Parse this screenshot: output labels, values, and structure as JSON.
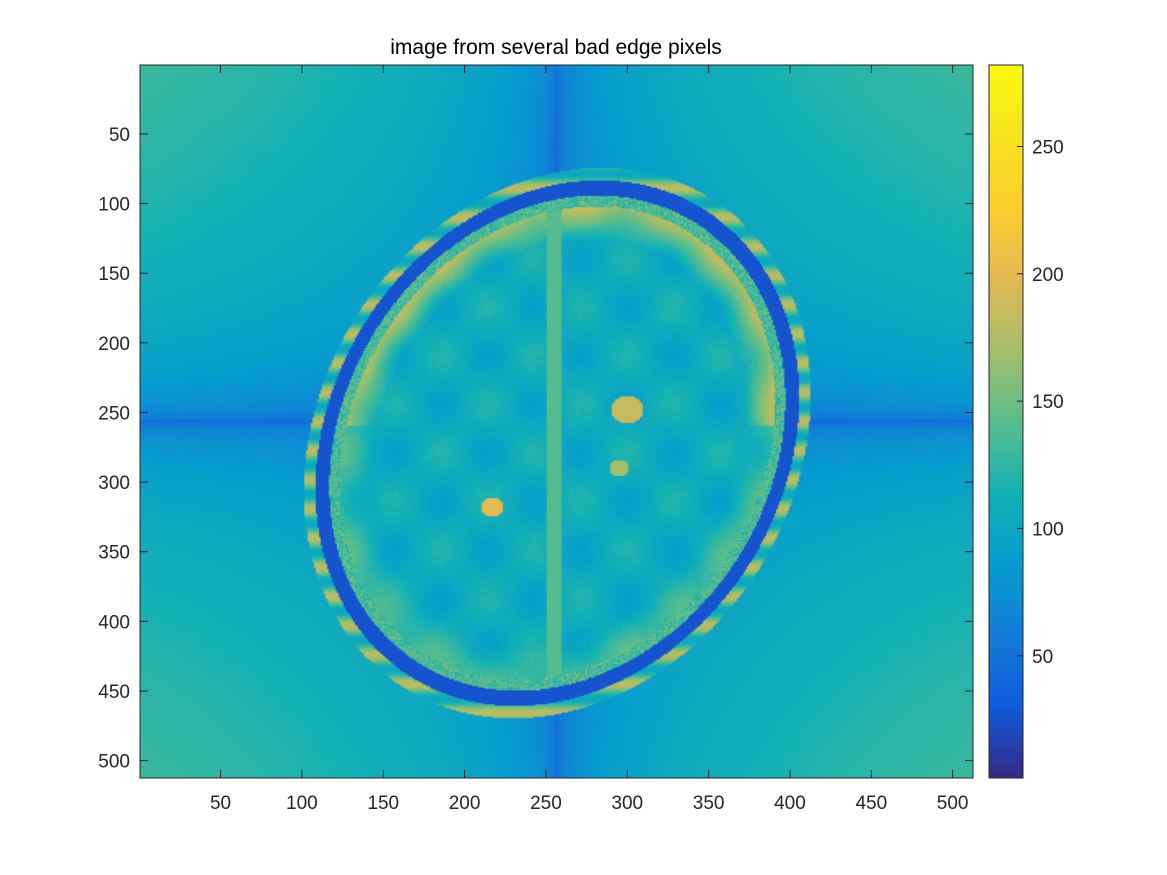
{
  "chart_data": {
    "type": "heatmap",
    "title": "image from several bad edge pixels",
    "xlabel": "",
    "ylabel": "",
    "image_size": [
      512,
      512
    ],
    "xlim": [
      0.5,
      512.5
    ],
    "ylim": [
      0.5,
      512.5
    ],
    "y_direction": "reverse",
    "x_ticks": [
      50,
      100,
      150,
      200,
      250,
      300,
      350,
      400,
      450,
      500
    ],
    "y_ticks": [
      50,
      100,
      150,
      200,
      250,
      300,
      350,
      400,
      450,
      500
    ],
    "x_tick_labels": [
      "50",
      "100",
      "150",
      "200",
      "250",
      "300",
      "350",
      "400",
      "450",
      "500"
    ],
    "y_tick_labels": [
      "50",
      "100",
      "150",
      "200",
      "250",
      "300",
      "350",
      "400",
      "450",
      "500"
    ],
    "colormap": "parula",
    "colorbar": {
      "location": "right",
      "clim": [
        2,
        282
      ],
      "ticks": [
        50,
        100,
        150,
        200,
        250
      ],
      "tick_labels": [
        "50",
        "100",
        "150",
        "200",
        "250"
      ]
    },
    "description_values": {
      "background_corner_value": 130,
      "background_center_cross_value": 20,
      "brain_tissue_value": 100,
      "csf_bright_value": 215,
      "head_center": [
        257,
        272
      ],
      "head_semi_axes": [
        150,
        202
      ],
      "head_tilt_deg": -18
    },
    "grid": false,
    "legend": "none"
  },
  "colors": {
    "axes_line": "#262626",
    "parula_low": "#352a87",
    "parula_high": "#f9fb0e"
  }
}
